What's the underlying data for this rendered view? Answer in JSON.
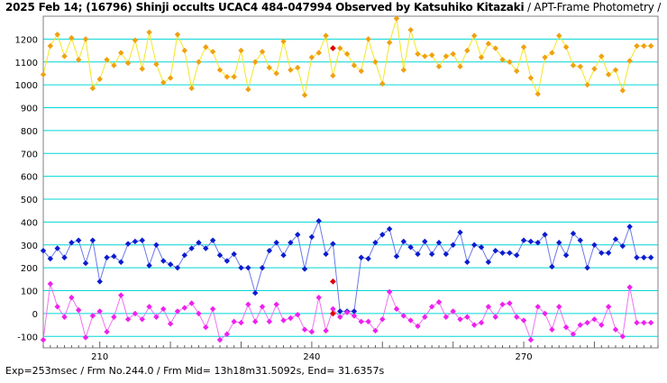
{
  "header": {
    "title_bold": "2025 Feb 14; (16796) Shinji occults UCAC4 484-047994 Observed by Katsuhiko Kitazaki",
    "title_rest": " / APT-Frame Photometry /"
  },
  "footer": {
    "text": "Exp=253msec / Frm No.244.0 / Frm Mid= 13h18m31.5092s,  End= 31.6357s"
  },
  "colors": {
    "yellow_line": "#f5e61e",
    "yellow_marker": "#f0a010",
    "blue": "#0b1ccf",
    "magenta": "#ee20ee",
    "red": "#e00000",
    "grid": "#00d6d6"
  },
  "chart_data": {
    "type": "line",
    "title": "",
    "xlabel": "",
    "ylabel": "",
    "xlim": [
      202,
      289
    ],
    "ylim": [
      -150,
      1300
    ],
    "x_ticks": [
      210,
      240,
      270
    ],
    "y_ticks": [
      -100,
      0,
      100,
      200,
      300,
      400,
      500,
      600,
      700,
      800,
      900,
      1000,
      1100,
      1200
    ],
    "grid": true,
    "x": [
      202,
      203,
      204,
      205,
      206,
      207,
      208,
      209,
      210,
      211,
      212,
      213,
      214,
      215,
      216,
      217,
      218,
      219,
      220,
      221,
      222,
      223,
      224,
      225,
      226,
      227,
      228,
      229,
      230,
      231,
      232,
      233,
      234,
      235,
      236,
      237,
      238,
      239,
      240,
      241,
      242,
      243,
      244,
      245,
      246,
      247,
      248,
      249,
      250,
      251,
      252,
      253,
      254,
      255,
      256,
      257,
      258,
      259,
      260,
      261,
      262,
      263,
      264,
      265,
      266,
      267,
      268,
      269,
      270,
      271,
      272,
      273,
      274,
      275,
      276,
      277,
      278,
      279,
      280,
      281,
      282,
      283,
      284,
      285,
      286,
      287,
      288
    ],
    "series": [
      {
        "name": "",
        "color": "yellow",
        "values": [
          1045,
          1170,
          1220,
          1125,
          1205,
          1110,
          1200,
          985,
          1025,
          1110,
          1085,
          1140,
          1095,
          1195,
          1070,
          1230,
          1090,
          1010,
          1030,
          1220,
          1150,
          985,
          1100,
          1165,
          1145,
          1065,
          1035,
          1035,
          1150,
          980,
          1100,
          1145,
          1075,
          1050,
          1190,
          1065,
          1075,
          955,
          1120,
          1140,
          1215,
          1040,
          1160,
          1135,
          1085,
          1060,
          1200,
          1100,
          1005,
          1185,
          1290,
          1065,
          1240,
          1135,
          1125,
          1130,
          1080,
          1125,
          1135,
          1080,
          1150,
          1215,
          1120,
          1180,
          1160,
          1110,
          1100,
          1060,
          1165,
          1030,
          960,
          1120,
          1140,
          1215,
          1165,
          1085,
          1080,
          1000,
          1070,
          1125,
          1045,
          1065,
          975,
          1105,
          1170,
          1170,
          1170
        ]
      },
      {
        "name": "",
        "color": "blue",
        "values": [
          275,
          240,
          285,
          245,
          310,
          320,
          220,
          320,
          140,
          245,
          250,
          225,
          305,
          315,
          320,
          210,
          300,
          230,
          215,
          200,
          255,
          285,
          310,
          285,
          320,
          255,
          230,
          260,
          200,
          200,
          90,
          200,
          275,
          310,
          255,
          310,
          345,
          195,
          335,
          405,
          260,
          305,
          10,
          10,
          10,
          245,
          240,
          310,
          345,
          370,
          250,
          315,
          290,
          260,
          315,
          260,
          310,
          260,
          300,
          355,
          225,
          300,
          290,
          225,
          275,
          265,
          265,
          255,
          320,
          315,
          310,
          345,
          205,
          310,
          255,
          350,
          320,
          200,
          300,
          265,
          265,
          325,
          295,
          380,
          245,
          245,
          245
        ]
      },
      {
        "name": "",
        "color": "magenta",
        "values": [
          -115,
          130,
          30,
          -15,
          70,
          15,
          -105,
          -10,
          10,
          -80,
          -15,
          80,
          -25,
          0,
          -25,
          30,
          -15,
          20,
          -45,
          10,
          25,
          45,
          0,
          -60,
          20,
          -115,
          -90,
          -35,
          -40,
          40,
          -35,
          30,
          -35,
          40,
          -30,
          -20,
          -5,
          -70,
          -80,
          70,
          -75,
          20,
          -15,
          5,
          -10,
          -35,
          -35,
          -75,
          -25,
          95,
          20,
          -10,
          -30,
          -55,
          -15,
          30,
          50,
          -15,
          10,
          -25,
          -15,
          -50,
          -40,
          30,
          -15,
          40,
          45,
          -15,
          -30,
          -115,
          30,
          0,
          -70,
          30,
          -60,
          -90,
          -50,
          -40,
          -25,
          -50,
          30,
          -70,
          -100,
          115,
          -40,
          -40,
          -40
        ]
      },
      {
        "name": "",
        "color": "red",
        "points": [
          [
            243,
            1160
          ],
          [
            243,
            140
          ],
          [
            243,
            0
          ]
        ]
      }
    ]
  }
}
